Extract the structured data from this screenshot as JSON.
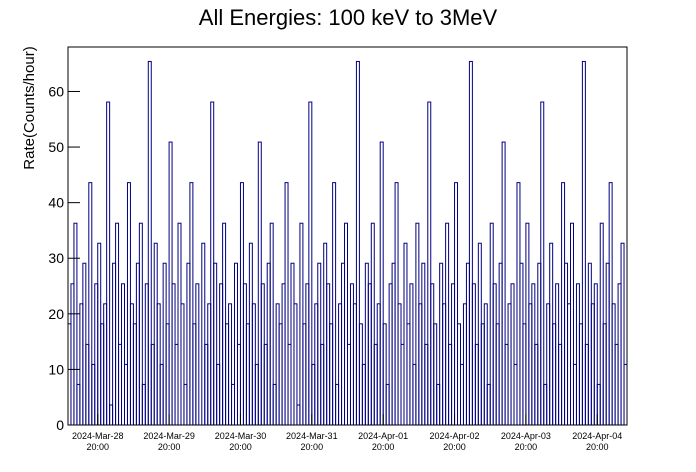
{
  "chart_data": {
    "type": "histogram",
    "title": "All Energies:  100 keV to 3MeV",
    "ylabel": "Rate(Counts/hour)",
    "color": "#000080",
    "bins": [
      "2024-03-28T10:00",
      "2024-03-28T11:00",
      "2024-03-28T12:00",
      "2024-03-28T13:00",
      "2024-03-28T14:00",
      "2024-03-28T15:00",
      "2024-03-28T16:00",
      "2024-03-28T17:00",
      "2024-03-28T18:00",
      "2024-03-28T19:00",
      "2024-03-28T20:00",
      "2024-03-28T21:00",
      "2024-03-28T22:00",
      "2024-03-28T23:00",
      "2024-03-29T00:00",
      "2024-03-29T01:00",
      "2024-03-29T02:00",
      "2024-03-29T03:00",
      "2024-03-29T04:00",
      "2024-03-29T05:00",
      "2024-03-29T06:00",
      "2024-03-29T07:00",
      "2024-03-29T08:00",
      "2024-03-29T09:00",
      "2024-03-29T10:00",
      "2024-03-29T11:00",
      "2024-03-29T12:00",
      "2024-03-29T13:00",
      "2024-03-29T14:00",
      "2024-03-29T15:00",
      "2024-03-29T16:00",
      "2024-03-29T17:00",
      "2024-03-29T18:00",
      "2024-03-29T19:00",
      "2024-03-29T20:00",
      "2024-03-29T21:00",
      "2024-03-29T22:00",
      "2024-03-29T23:00",
      "2024-03-30T00:00",
      "2024-03-30T01:00",
      "2024-03-30T02:00",
      "2024-03-30T03:00",
      "2024-03-30T04:00",
      "2024-03-30T05:00",
      "2024-03-30T06:00",
      "2024-03-30T07:00",
      "2024-03-30T08:00",
      "2024-03-30T09:00",
      "2024-03-30T10:00",
      "2024-03-30T11:00",
      "2024-03-30T12:00",
      "2024-03-30T13:00",
      "2024-03-30T14:00",
      "2024-03-30T15:00",
      "2024-03-30T16:00",
      "2024-03-30T17:00",
      "2024-03-30T18:00",
      "2024-03-30T19:00",
      "2024-03-30T20:00",
      "2024-03-30T21:00",
      "2024-03-30T22:00",
      "2024-03-30T23:00",
      "2024-03-31T00:00",
      "2024-03-31T01:00",
      "2024-03-31T02:00",
      "2024-03-31T03:00",
      "2024-03-31T04:00",
      "2024-03-31T05:00",
      "2024-03-31T06:00",
      "2024-03-31T07:00",
      "2024-03-31T08:00",
      "2024-03-31T09:00",
      "2024-03-31T10:00",
      "2024-03-31T11:00",
      "2024-03-31T12:00",
      "2024-03-31T13:00",
      "2024-03-31T14:00",
      "2024-03-31T15:00",
      "2024-03-31T16:00",
      "2024-03-31T17:00",
      "2024-03-31T18:00",
      "2024-03-31T19:00",
      "2024-03-31T20:00",
      "2024-03-31T21:00",
      "2024-03-31T22:00",
      "2024-03-31T23:00",
      "2024-04-01T00:00",
      "2024-04-01T01:00",
      "2024-04-01T02:00",
      "2024-04-01T03:00",
      "2024-04-01T04:00",
      "2024-04-01T05:00",
      "2024-04-01T06:00",
      "2024-04-01T07:00",
      "2024-04-01T08:00",
      "2024-04-01T09:00",
      "2024-04-01T10:00",
      "2024-04-01T11:00",
      "2024-04-01T12:00",
      "2024-04-01T13:00",
      "2024-04-01T14:00",
      "2024-04-01T15:00",
      "2024-04-01T16:00",
      "2024-04-01T17:00",
      "2024-04-01T18:00",
      "2024-04-01T19:00",
      "2024-04-01T20:00",
      "2024-04-01T21:00",
      "2024-04-01T22:00",
      "2024-04-01T23:00",
      "2024-04-02T00:00",
      "2024-04-02T01:00",
      "2024-04-02T02:00",
      "2024-04-02T03:00",
      "2024-04-02T04:00",
      "2024-04-02T05:00",
      "2024-04-02T06:00",
      "2024-04-02T07:00",
      "2024-04-02T08:00",
      "2024-04-02T09:00",
      "2024-04-02T10:00",
      "2024-04-02T11:00",
      "2024-04-02T12:00",
      "2024-04-02T13:00",
      "2024-04-02T14:00",
      "2024-04-02T15:00",
      "2024-04-02T16:00",
      "2024-04-02T17:00",
      "2024-04-02T18:00",
      "2024-04-02T19:00",
      "2024-04-02T20:00",
      "2024-04-02T21:00",
      "2024-04-02T22:00",
      "2024-04-02T23:00",
      "2024-04-03T00:00",
      "2024-04-03T01:00",
      "2024-04-03T02:00",
      "2024-04-03T03:00",
      "2024-04-03T04:00",
      "2024-04-03T05:00",
      "2024-04-03T06:00",
      "2024-04-03T07:00",
      "2024-04-03T08:00",
      "2024-04-03T09:00",
      "2024-04-03T10:00",
      "2024-04-03T11:00",
      "2024-04-03T12:00",
      "2024-04-03T13:00",
      "2024-04-03T14:00",
      "2024-04-03T15:00",
      "2024-04-03T16:00",
      "2024-04-03T17:00",
      "2024-04-03T18:00",
      "2024-04-03T19:00",
      "2024-04-03T20:00",
      "2024-04-03T21:00",
      "2024-04-03T22:00",
      "2024-04-03T23:00",
      "2024-04-04T00:00",
      "2024-04-04T01:00",
      "2024-04-04T02:00",
      "2024-04-04T03:00",
      "2024-04-04T04:00",
      "2024-04-04T05:00",
      "2024-04-04T06:00",
      "2024-04-04T07:00",
      "2024-04-04T08:00",
      "2024-04-04T09:00",
      "2024-04-04T10:00",
      "2024-04-04T11:00",
      "2024-04-04T12:00",
      "2024-04-04T13:00",
      "2024-04-04T14:00",
      "2024-04-04T15:00",
      "2024-04-04T16:00",
      "2024-04-04T17:00",
      "2024-04-04T18:00",
      "2024-04-04T19:00",
      "2024-04-04T20:00",
      "2024-04-04T21:00",
      "2024-04-04T22:00",
      "2024-04-04T23:00",
      "2024-04-05T00:00",
      "2024-04-05T01:00",
      "2024-04-05T02:00",
      "2024-04-05T03:00",
      "2024-04-05T04:00",
      "2024-04-05T05:00",
      "2024-04-05T06:00"
    ],
    "values": [
      18.2,
      25.4,
      36.3,
      7.3,
      21.8,
      29.1,
      14.5,
      43.6,
      10.9,
      25.4,
      32.7,
      18.2,
      21.8,
      58.1,
      3.6,
      29.1,
      36.3,
      14.5,
      25.4,
      10.9,
      43.6,
      21.8,
      18.2,
      29.1,
      36.3,
      7.3,
      25.4,
      65.4,
      14.5,
      32.7,
      21.8,
      10.9,
      29.1,
      18.2,
      50.9,
      25.4,
      14.5,
      36.3,
      21.8,
      7.3,
      29.1,
      43.6,
      18.2,
      25.4,
      0,
      32.7,
      14.5,
      21.8,
      58.1,
      29.1,
      10.9,
      25.4,
      36.3,
      18.2,
      21.8,
      7.3,
      29.1,
      14.5,
      43.6,
      25.4,
      18.2,
      32.7,
      21.8,
      10.9,
      50.9,
      25.4,
      14.5,
      29.1,
      36.3,
      7.3,
      21.8,
      18.2,
      25.4,
      43.6,
      14.5,
      29.1,
      21.8,
      3.6,
      36.3,
      18.2,
      25.4,
      58.1,
      10.9,
      21.8,
      29.1,
      14.5,
      32.7,
      25.4,
      18.2,
      43.6,
      7.3,
      21.8,
      29.1,
      36.3,
      14.5,
      25.4,
      21.8,
      65.4,
      18.2,
      10.9,
      29.1,
      25.4,
      36.3,
      14.5,
      21.8,
      50.9,
      18.2,
      7.3,
      25.4,
      29.1,
      43.6,
      21.8,
      14.5,
      32.7,
      18.2,
      25.4,
      10.9,
      36.3,
      21.8,
      29.1,
      14.5,
      58.1,
      25.4,
      18.2,
      7.3,
      29.1,
      21.8,
      36.3,
      14.5,
      25.4,
      43.6,
      18.2,
      10.9,
      21.8,
      29.1,
      65.4,
      25.4,
      14.5,
      32.7,
      18.2,
      21.8,
      7.3,
      36.3,
      25.4,
      18.2,
      29.1,
      50.9,
      14.5,
      21.8,
      25.4,
      10.9,
      43.6,
      29.1,
      18.2,
      36.3,
      21.8,
      25.4,
      14.5,
      29.1,
      58.1,
      7.3,
      21.8,
      32.7,
      18.2,
      25.4,
      14.5,
      43.6,
      29.1,
      21.8,
      36.3,
      10.9,
      25.4,
      18.2,
      65.4,
      14.5,
      29.1,
      21.8,
      25.4,
      7.3,
      36.3,
      18.2,
      29.1,
      43.6,
      21.8,
      14.5,
      25.4,
      32.7,
      10.9
    ],
    "xlim": [
      "2024-03-28T10:00",
      "2024-04-05T06:00"
    ],
    "xticks": [
      {
        "value": "2024-03-28T20:00",
        "label": "2024-Mar-28 20:00"
      },
      {
        "value": "2024-03-29T20:00",
        "label": "2024-Mar-29 20:00"
      },
      {
        "value": "2024-03-30T20:00",
        "label": "2024-Mar-30 20:00"
      },
      {
        "value": "2024-03-31T20:00",
        "label": "2024-Mar-31 20:00"
      },
      {
        "value": "2024-04-01T20:00",
        "label": "2024-Apr-01 20:00"
      },
      {
        "value": "2024-04-02T20:00",
        "label": "2024-Apr-02 20:00"
      },
      {
        "value": "2024-04-03T20:00",
        "label": "2024-Apr-03 20:00"
      },
      {
        "value": "2024-04-04T20:00",
        "label": "2024-Apr-04 20:00"
      }
    ],
    "ylim": [
      0,
      68
    ],
    "yticks": [
      0,
      10,
      20,
      30,
      40,
      50,
      60
    ]
  }
}
